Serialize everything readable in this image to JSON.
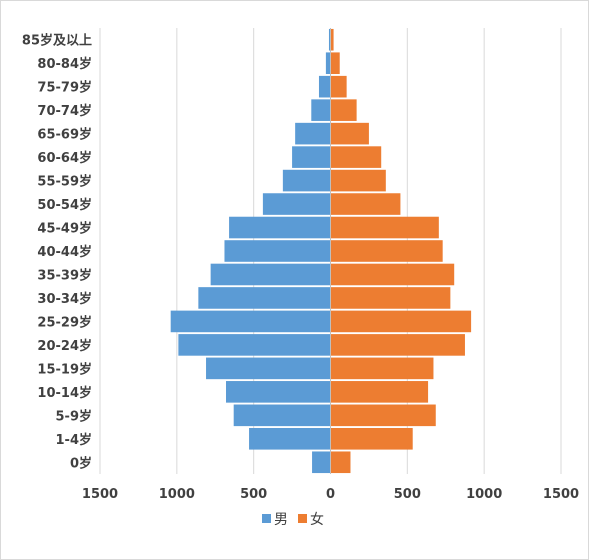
{
  "chart_data": {
    "type": "bar",
    "orientation": "horizontal",
    "layout": "population-pyramid",
    "categories": [
      "0岁",
      "1-4岁",
      "5-9岁",
      "10-14岁",
      "15-19岁",
      "20-24岁",
      "25-29岁",
      "30-34岁",
      "35-39岁",
      "40-44岁",
      "45-49岁",
      "50-54岁",
      "55-59岁",
      "60-64岁",
      "65-69岁",
      "70-74岁",
      "75-79岁",
      "80-84岁",
      "85岁及以上"
    ],
    "series": [
      {
        "name": "男",
        "color": "#5b9bd5",
        "side": "left",
        "values": [
          120,
          530,
          630,
          680,
          810,
          990,
          1040,
          860,
          780,
          690,
          660,
          440,
          310,
          250,
          230,
          125,
          75,
          30,
          10
        ]
      },
      {
        "name": "女",
        "color": "#ed7d31",
        "side": "right",
        "values": [
          130,
          535,
          685,
          635,
          670,
          875,
          915,
          780,
          805,
          730,
          705,
          455,
          360,
          330,
          250,
          170,
          105,
          60,
          20
        ]
      }
    ],
    "x_ticks": [
      "1500",
      "1000",
      "500",
      "0",
      "500",
      "1000",
      "1500"
    ],
    "xlim": [
      -1500,
      1500
    ],
    "grid": true,
    "legend_position": "bottom"
  }
}
